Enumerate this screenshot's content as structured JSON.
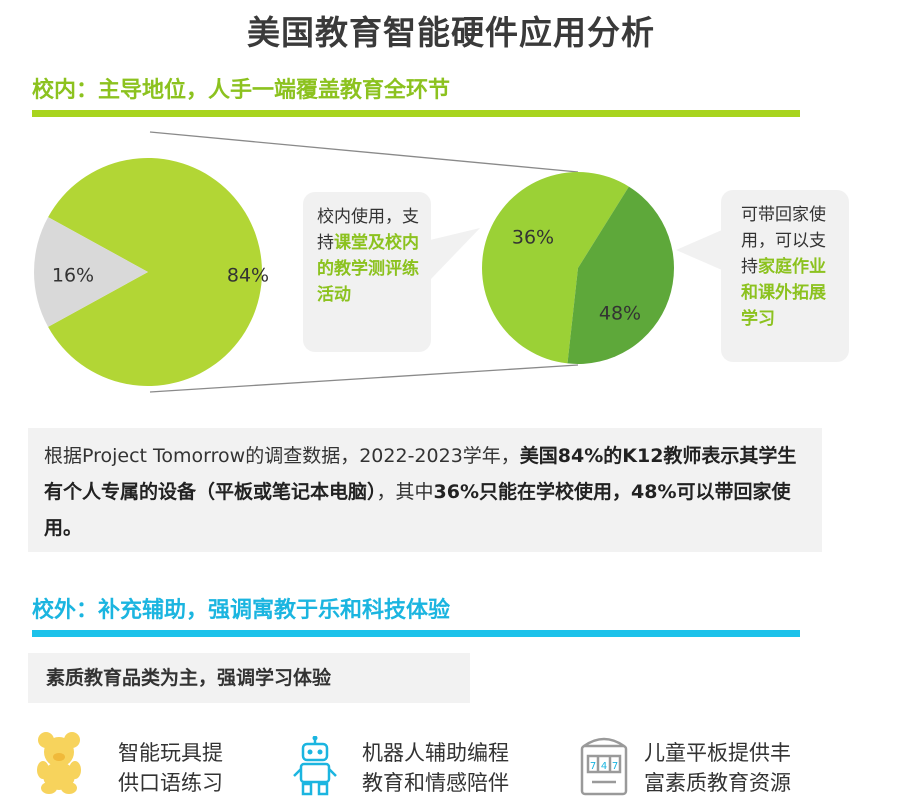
{
  "title": "美国教育智能硬件应用分析",
  "section1": {
    "heading": "校内：主导地位，人手一端覆盖教育全环节",
    "accent": "#8cc21f"
  },
  "section2": {
    "heading": "校外：补充辅助，强调寓教于乐和科技体验",
    "accent": "#1bb5e0"
  },
  "chart_data": [
    {
      "type": "pie",
      "slices": [
        {
          "label": "84%",
          "value": 84,
          "color": "#b2d635"
        },
        {
          "label": "16%",
          "value": 16,
          "color": "#d9d9d9"
        }
      ]
    },
    {
      "type": "pie",
      "slices": [
        {
          "label": "36%",
          "value": 36,
          "color": "#9bd136"
        },
        {
          "label": "48%",
          "value": 48,
          "color": "#5ea83a"
        }
      ]
    }
  ],
  "callout_left": {
    "text": "校内使用，支持",
    "highlight": "课堂及校内的教学测评练活动"
  },
  "callout_right": {
    "text": "可带回家使用，可以支持",
    "highlight": "家庭作业和课外拓展学习"
  },
  "info": {
    "p1": "根据Project  Tomorrow的调查数据，2022-2023学年，",
    "b1": "美国84%的K12教师表示其学生有个人专属的设备（平板或笔记本电脑）",
    "p2": "，其中",
    "b2": "36%只能在学校使用，48%可以带回家使用。"
  },
  "subheading": "素质教育品类为主，强调学习体验",
  "features": [
    {
      "icon": "teddy-bear-icon",
      "line1": "智能玩具提",
      "line2": "供口语练习"
    },
    {
      "icon": "robot-icon",
      "line1": "机器人辅助编程",
      "line2": "教育和情感陪伴"
    },
    {
      "icon": "tablet-machine-icon",
      "line1": "儿童平板提供丰",
      "line2": "富素质教育资源"
    }
  ]
}
